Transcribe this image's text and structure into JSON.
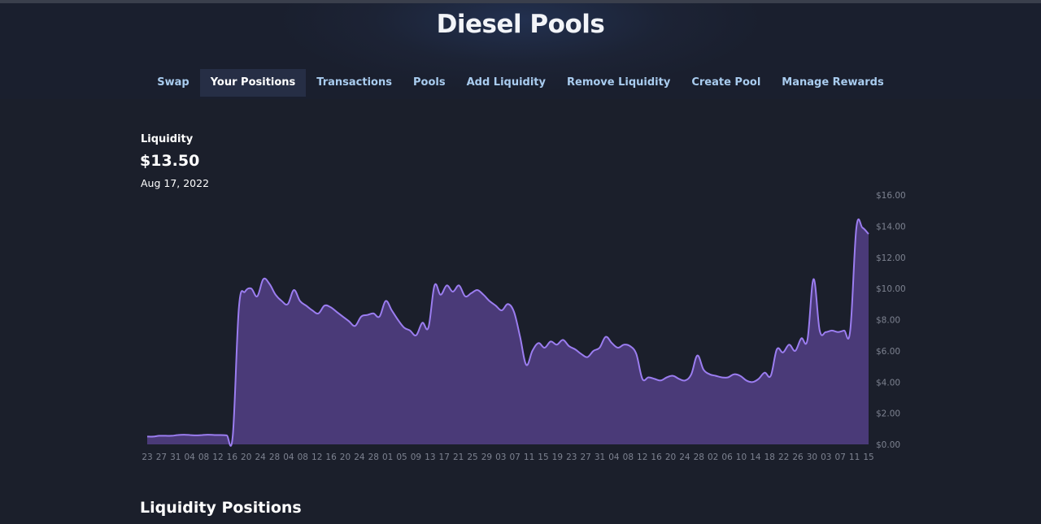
{
  "header": {
    "title": "Diesel Pools"
  },
  "nav": {
    "items": [
      {
        "label": "Swap",
        "active": false
      },
      {
        "label": "Your Positions",
        "active": true
      },
      {
        "label": "Transactions",
        "active": false
      },
      {
        "label": "Pools",
        "active": false
      },
      {
        "label": "Add Liquidity",
        "active": false
      },
      {
        "label": "Remove Liquidity",
        "active": false
      },
      {
        "label": "Create Pool",
        "active": false
      },
      {
        "label": "Manage Rewards",
        "active": false
      }
    ]
  },
  "summary": {
    "label": "Liquidity",
    "value": "$13.50",
    "date": "Aug 17, 2022"
  },
  "sections": {
    "positions_title": "Liquidity Positions"
  },
  "colors": {
    "line": "#9b7df0",
    "fill": "#4a3a78",
    "axis_text": "#7d8290"
  },
  "chart_data": {
    "type": "area",
    "x_tick_labels": [
      "23",
      "27",
      "31",
      "04",
      "08",
      "12",
      "16",
      "20",
      "24",
      "28",
      "04",
      "08",
      "12",
      "16",
      "20",
      "24",
      "28",
      "01",
      "05",
      "09",
      "13",
      "17",
      "21",
      "25",
      "29",
      "03",
      "07",
      "11",
      "15",
      "19",
      "23",
      "27",
      "31",
      "04",
      "08",
      "12",
      "16",
      "20",
      "24",
      "28",
      "02",
      "06",
      "10",
      "14",
      "18",
      "22",
      "26",
      "30",
      "03",
      "07",
      "11",
      "15"
    ],
    "y_tick_labels": [
      "$0.00",
      "$2.00",
      "$4.00",
      "$6.00",
      "$8.00",
      "$10.00",
      "$12.00",
      "$14.00",
      "$16.00"
    ],
    "ylim": [
      0,
      16
    ],
    "values": [
      0.5,
      0.5,
      0.55,
      0.55,
      0.55,
      0.6,
      0.62,
      0.6,
      0.58,
      0.6,
      0.62,
      0.6,
      0.6,
      0.58,
      0.55,
      8.8,
      9.8,
      10.0,
      9.5,
      10.6,
      10.3,
      9.6,
      9.2,
      9.0,
      9.9,
      9.2,
      8.9,
      8.6,
      8.4,
      8.9,
      8.8,
      8.5,
      8.2,
      7.9,
      7.6,
      8.2,
      8.3,
      8.4,
      8.2,
      9.2,
      8.6,
      8.0,
      7.5,
      7.3,
      7.0,
      7.8,
      7.5,
      10.2,
      9.6,
      10.2,
      9.8,
      10.2,
      9.5,
      9.7,
      9.9,
      9.6,
      9.2,
      8.9,
      8.6,
      9.0,
      8.5,
      6.9,
      5.1,
      6.0,
      6.5,
      6.2,
      6.6,
      6.4,
      6.7,
      6.3,
      6.1,
      5.8,
      5.6,
      6.0,
      6.2,
      6.9,
      6.5,
      6.2,
      6.4,
      6.3,
      5.8,
      4.2,
      4.3,
      4.2,
      4.1,
      4.3,
      4.4,
      4.2,
      4.1,
      4.5,
      5.7,
      4.8,
      4.5,
      4.4,
      4.3,
      4.3,
      4.5,
      4.4,
      4.1,
      4.0,
      4.2,
      4.6,
      4.4,
      6.1,
      5.9,
      6.4,
      6.0,
      6.8,
      6.7,
      10.6,
      7.3,
      7.2,
      7.3,
      7.2,
      7.3,
      7.3,
      13.9,
      13.9,
      13.5
    ],
    "grid": false,
    "legend": "none"
  }
}
